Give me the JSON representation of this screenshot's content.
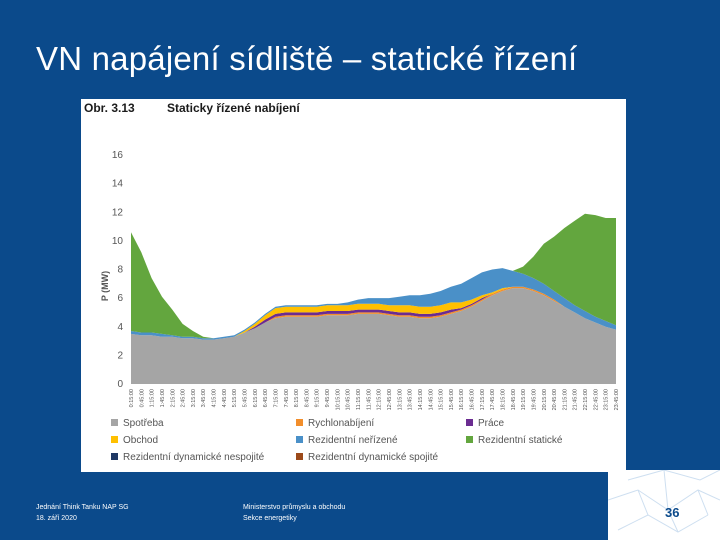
{
  "slide": {
    "title": "VN napájení sídliště – statické řízení",
    "footer_left": [
      "Jednání Think Tanku NAP SG",
      "18. září 2020"
    ],
    "footer_mid": [
      "Ministerstvo průmyslu a obchodu",
      "Sekce energetiky"
    ],
    "page_number": "36"
  },
  "chart_data": {
    "type": "area",
    "figure_number": "Obr.  3.13",
    "title": "Staticky řízené nabíjení",
    "ylabel": "P (MW)",
    "xlabel": "",
    "ylim": [
      0,
      16
    ],
    "yticks": [
      0,
      2,
      4,
      6,
      8,
      10,
      12,
      14,
      16
    ],
    "grid": false,
    "legend_position": "bottom",
    "stacked": true,
    "x": [
      "0:15:00",
      "0:45:00",
      "1:15:00",
      "1:45:00",
      "2:15:00",
      "2:45:00",
      "3:15:00",
      "3:45:00",
      "4:15:00",
      "4:45:00",
      "5:15:00",
      "5:45:00",
      "6:15:00",
      "6:45:00",
      "7:15:00",
      "7:45:00",
      "8:15:00",
      "8:45:00",
      "9:15:00",
      "9:45:00",
      "10:15:00",
      "10:45:00",
      "11:15:00",
      "11:45:00",
      "12:15:00",
      "12:45:00",
      "13:15:00",
      "13:45:00",
      "14:15:00",
      "14:45:00",
      "15:15:00",
      "15:45:00",
      "16:15:00",
      "16:45:00",
      "17:15:00",
      "17:45:00",
      "18:15:00",
      "18:45:00",
      "19:15:00",
      "19:45:00",
      "20:15:00",
      "20:45:00",
      "21:15:00",
      "21:45:00",
      "22:15:00",
      "22:45:00",
      "23:15:00",
      "23:45:00"
    ],
    "series": [
      {
        "name": "Spotřeba",
        "color": "#a5a5a5",
        "values": [
          3.5,
          3.4,
          3.4,
          3.3,
          3.3,
          3.2,
          3.2,
          3.1,
          3.1,
          3.2,
          3.3,
          3.6,
          3.9,
          4.3,
          4.6,
          4.7,
          4.7,
          4.7,
          4.7,
          4.8,
          4.8,
          4.8,
          4.9,
          4.9,
          4.9,
          4.8,
          4.7,
          4.7,
          4.6,
          4.6,
          4.7,
          4.9,
          5.1,
          5.4,
          5.8,
          6.2,
          6.5,
          6.7,
          6.7,
          6.5,
          6.2,
          5.8,
          5.4,
          5.0,
          4.6,
          4.3,
          4.0,
          3.8
        ]
      },
      {
        "name": "Rychlonabíjení",
        "color": "#f28e2b",
        "values": [
          0,
          0,
          0,
          0,
          0,
          0,
          0,
          0,
          0,
          0,
          0,
          0,
          0,
          0,
          0.1,
          0.1,
          0.1,
          0.1,
          0.1,
          0.1,
          0.1,
          0.1,
          0.1,
          0.1,
          0.1,
          0.1,
          0.1,
          0.1,
          0.1,
          0.1,
          0.1,
          0.1,
          0.1,
          0.1,
          0.1,
          0.1,
          0.1,
          0.1,
          0.1,
          0.1,
          0.1,
          0.1,
          0,
          0,
          0,
          0,
          0,
          0
        ]
      },
      {
        "name": "Práce",
        "color": "#6b2c91",
        "values": [
          0,
          0,
          0,
          0,
          0,
          0,
          0,
          0,
          0,
          0,
          0,
          0,
          0.1,
          0.2,
          0.2,
          0.2,
          0.2,
          0.2,
          0.2,
          0.2,
          0.2,
          0.2,
          0.2,
          0.2,
          0.2,
          0.2,
          0.2,
          0.2,
          0.2,
          0.2,
          0.2,
          0.2,
          0.1,
          0.1,
          0.1,
          0,
          0,
          0,
          0,
          0,
          0,
          0,
          0,
          0,
          0,
          0,
          0,
          0
        ]
      },
      {
        "name": "Obchod",
        "color": "#ffc000",
        "values": [
          0,
          0,
          0,
          0,
          0,
          0,
          0,
          0,
          0,
          0,
          0,
          0.1,
          0.2,
          0.3,
          0.4,
          0.4,
          0.4,
          0.4,
          0.4,
          0.4,
          0.4,
          0.4,
          0.4,
          0.4,
          0.4,
          0.4,
          0.5,
          0.5,
          0.5,
          0.5,
          0.5,
          0.5,
          0.4,
          0.3,
          0.2,
          0.1,
          0.1,
          0,
          0,
          0,
          0,
          0,
          0,
          0,
          0,
          0,
          0,
          0
        ]
      },
      {
        "name": "Rezidentní neřízené",
        "color": "#4a90c8",
        "values": [
          0.2,
          0.2,
          0.2,
          0.2,
          0.1,
          0.1,
          0.1,
          0.1,
          0.1,
          0.1,
          0.1,
          0.1,
          0.1,
          0.1,
          0.1,
          0.1,
          0.1,
          0.1,
          0.1,
          0.1,
          0.1,
          0.2,
          0.3,
          0.4,
          0.4,
          0.5,
          0.6,
          0.7,
          0.8,
          0.9,
          1.0,
          1.1,
          1.3,
          1.5,
          1.6,
          1.6,
          1.4,
          1.1,
          0.9,
          0.8,
          0.7,
          0.6,
          0.6,
          0.5,
          0.5,
          0.4,
          0.4,
          0.3
        ]
      },
      {
        "name": "Rezidentní statické",
        "color": "#63a63e",
        "values": [
          6.9,
          5.6,
          3.8,
          2.6,
          1.8,
          0.9,
          0.4,
          0.1,
          0,
          0,
          0,
          0,
          0,
          0,
          0,
          0,
          0,
          0,
          0,
          0,
          0,
          0,
          0,
          0,
          0,
          0,
          0,
          0,
          0,
          0,
          0,
          0,
          0,
          0,
          0,
          0,
          0,
          0,
          0.5,
          1.5,
          2.8,
          3.8,
          4.9,
          5.9,
          6.8,
          7.1,
          7.2,
          7.5
        ]
      },
      {
        "name": "Rezidentní dynamické nespojité",
        "color": "#1f3864",
        "values": [
          0,
          0,
          0,
          0,
          0,
          0,
          0,
          0,
          0,
          0,
          0,
          0,
          0,
          0,
          0,
          0,
          0,
          0,
          0,
          0,
          0,
          0,
          0,
          0,
          0,
          0,
          0,
          0,
          0,
          0,
          0,
          0,
          0,
          0,
          0,
          0,
          0,
          0,
          0,
          0,
          0,
          0,
          0,
          0,
          0,
          0,
          0,
          0
        ]
      },
      {
        "name": "Rezidentní dynamické spojité",
        "color": "#9c4a1a",
        "values": [
          0,
          0,
          0,
          0,
          0,
          0,
          0,
          0,
          0,
          0,
          0,
          0,
          0,
          0,
          0,
          0,
          0,
          0,
          0,
          0,
          0,
          0,
          0,
          0,
          0,
          0,
          0,
          0,
          0,
          0,
          0,
          0,
          0,
          0,
          0,
          0,
          0,
          0,
          0,
          0,
          0,
          0,
          0,
          0,
          0,
          0,
          0,
          0
        ]
      }
    ],
    "legend": [
      {
        "name": "Spotřeba",
        "color": "#a5a5a5"
      },
      {
        "name": "Rychlonabíjení",
        "color": "#f28e2b"
      },
      {
        "name": "Práce",
        "color": "#6b2c91"
      },
      {
        "name": "Obchod",
        "color": "#ffc000"
      },
      {
        "name": "Rezidentní neřízené",
        "color": "#4a90c8"
      },
      {
        "name": "Rezidentní statické",
        "color": "#63a63e"
      },
      {
        "name": "Rezidentní dynamické nespojité",
        "color": "#1f3864"
      },
      {
        "name": "Rezidentní dynamické spojité",
        "color": "#9c4a1a"
      }
    ]
  }
}
